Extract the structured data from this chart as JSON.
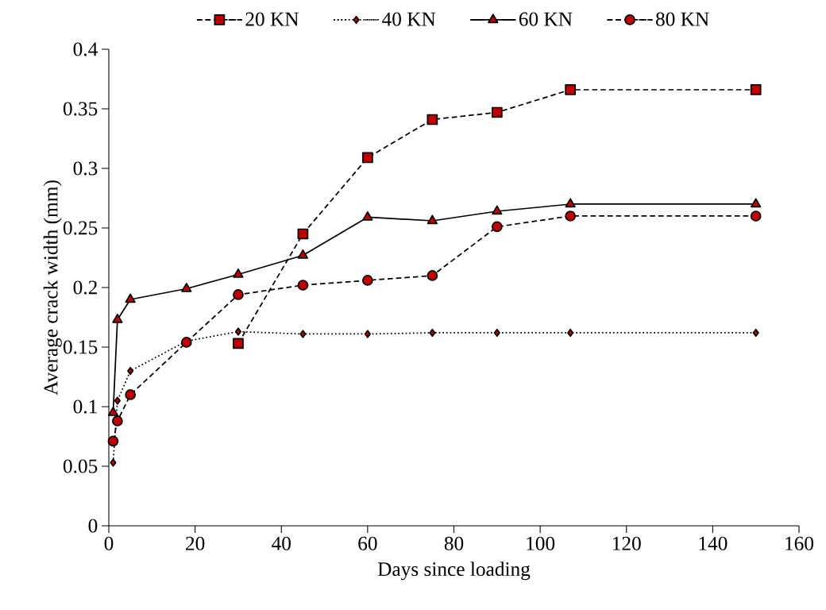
{
  "chart_data": {
    "type": "line",
    "xlabel": "Days since loading",
    "ylabel": "Average crack width (mm)",
    "xlim": [
      0,
      160
    ],
    "xticks": [
      0,
      20,
      40,
      60,
      80,
      100,
      120,
      140,
      160
    ],
    "ylim": [
      0,
      0.4
    ],
    "yticks": [
      0,
      0.05,
      0.1,
      0.15,
      0.2,
      0.25,
      0.3,
      0.35,
      0.4
    ],
    "grid": false,
    "legend": "top",
    "series": [
      {
        "name": "20 KN",
        "color": "#c00000",
        "marker": "square",
        "line_style": "dashed",
        "x": [
          30,
          45,
          60,
          75,
          90,
          107,
          150
        ],
        "values": [
          0.153,
          0.245,
          0.309,
          0.341,
          0.347,
          0.366,
          0.366
        ]
      },
      {
        "name": "40 KN",
        "color": "#c00000",
        "marker": "diamond",
        "line_style": "dotted",
        "x": [
          1,
          2,
          5,
          18,
          30,
          45,
          60,
          75,
          90,
          107,
          150
        ],
        "values": [
          0.053,
          0.105,
          0.13,
          0.155,
          0.163,
          0.161,
          0.161,
          0.162,
          0.162,
          0.162,
          0.162
        ]
      },
      {
        "name": "60 KN",
        "color": "#c00000",
        "marker": "triangle",
        "line_style": "solid",
        "x": [
          1,
          2,
          5,
          18,
          30,
          45,
          60,
          75,
          90,
          107,
          150
        ],
        "values": [
          0.095,
          0.173,
          0.19,
          0.199,
          0.211,
          0.227,
          0.259,
          0.256,
          0.264,
          0.27,
          0.27
        ]
      },
      {
        "name": "80 KN",
        "color": "#c00000",
        "marker": "circle",
        "line_style": "dashed",
        "x": [
          1,
          2,
          5,
          18,
          30,
          45,
          60,
          75,
          90,
          107,
          150
        ],
        "values": [
          0.071,
          0.088,
          0.11,
          0.154,
          0.194,
          0.202,
          0.206,
          0.21,
          0.251,
          0.26,
          0.26
        ]
      }
    ]
  }
}
